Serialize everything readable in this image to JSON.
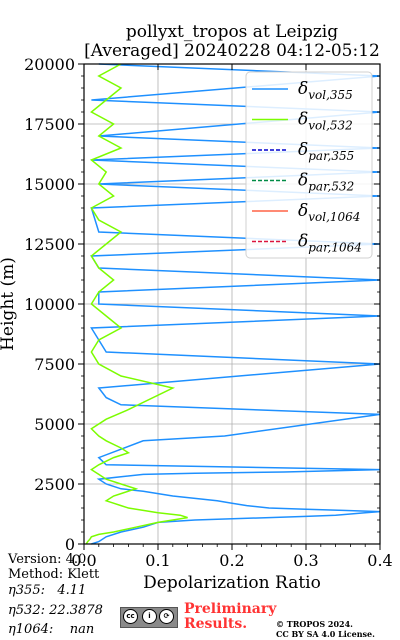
{
  "chart_data": {
    "type": "line",
    "title": "pollyxt_tropos at Leipzig",
    "subtitle": "[Averaged] 20240228 04:12-05:12",
    "xlabel": "Depolarization Ratio",
    "ylabel": "Height (m)",
    "xlim": [
      0,
      0.4
    ],
    "ylim": [
      0,
      20000
    ],
    "x_ticks": [
      "0.0",
      "0.1",
      "0.2",
      "0.3",
      "0.4"
    ],
    "y_ticks": [
      "0",
      "2500",
      "5000",
      "7500",
      "10000",
      "12500",
      "15000",
      "17500",
      "20000"
    ],
    "grid": true,
    "legend_position": "top-right",
    "series": [
      {
        "name": "δvol,355",
        "legend_main": "δ",
        "legend_sub": "vol,355",
        "color": "#1e90ff",
        "style": "solid",
        "x": [
          0.01,
          0.02,
          0.03,
          0.05,
          0.08,
          0.1,
          0.15,
          0.25,
          0.3,
          0.34,
          0.36,
          0.38,
          0.4,
          0.35,
          0.3,
          0.25,
          0.22,
          0.2,
          0.18,
          0.15,
          0.12,
          0.1,
          0.08,
          0.05,
          0.03,
          0.02,
          0.05,
          0.08,
          0.15,
          0.27,
          0.4,
          0.03,
          0.02,
          0.08,
          0.19,
          0.4,
          0.05,
          0.03,
          0.02,
          0.4,
          0.03,
          0.02,
          0.01,
          0.4,
          0.02,
          0.02,
          0.4,
          0.02,
          0.01,
          0.4,
          0.02,
          0.01,
          0.4,
          0.02,
          0.4,
          0.01,
          0.4,
          0.02,
          0.4,
          0.01,
          0.4,
          0.02
        ],
        "y": [
          0,
          100,
          300,
          500,
          700,
          900,
          1000,
          1100,
          1150,
          1200,
          1250,
          1300,
          1350,
          1400,
          1450,
          1500,
          1600,
          1700,
          1800,
          1900,
          2000,
          2100,
          2200,
          2300,
          2500,
          2700,
          2800,
          2900,
          2950,
          3000,
          3100,
          3300,
          3600,
          4300,
          4500,
          5400,
          5800,
          6100,
          6500,
          7500,
          8000,
          8500,
          9000,
          9500,
          10000,
          10500,
          11000,
          11500,
          12000,
          12500,
          13000,
          14000,
          14500,
          15000,
          15500,
          16000,
          16500,
          17000,
          18000,
          18500,
          19500,
          20000
        ]
      },
      {
        "name": "δvol,532",
        "legend_main": "δ",
        "legend_sub": "vol,532",
        "color": "#7cfc00",
        "style": "solid",
        "x": [
          0.003,
          0.005,
          0.008,
          0.01,
          0.02,
          0.04,
          0.07,
          0.1,
          0.12,
          0.14,
          0.13,
          0.1,
          0.08,
          0.06,
          0.05,
          0.04,
          0.03,
          0.04,
          0.05,
          0.06,
          0.07,
          0.05,
          0.03,
          0.02,
          0.01,
          0.02,
          0.04,
          0.06,
          0.05,
          0.03,
          0.02,
          0.01,
          0.03,
          0.06,
          0.12,
          0.05,
          0.02,
          0.01,
          0.02,
          0.05,
          0.03,
          0.01,
          0.02,
          0.04,
          0.02,
          0.01,
          0.03,
          0.05,
          0.02,
          0.01,
          0.04,
          0.02,
          0.03,
          0.01,
          0.05,
          0.02,
          0.04,
          0.01,
          0.03,
          0.05,
          0.02,
          0.05
        ],
        "y": [
          0,
          100,
          200,
          300,
          400,
          500,
          700,
          900,
          1000,
          1100,
          1200,
          1300,
          1400,
          1500,
          1600,
          1700,
          1800,
          2000,
          2100,
          2200,
          2300,
          2500,
          2700,
          2900,
          3100,
          3300,
          3600,
          3800,
          4000,
          4300,
          4500,
          4800,
          5200,
          5600,
          6500,
          7000,
          7500,
          8000,
          8500,
          9000,
          9500,
          10000,
          10500,
          11000,
          11500,
          12000,
          12500,
          13000,
          13500,
          14000,
          14500,
          15000,
          15500,
          16000,
          16500,
          17000,
          17500,
          18000,
          18500,
          19000,
          19500,
          20000
        ]
      },
      {
        "name": "δpar,355",
        "legend_main": "δ",
        "legend_sub": "par,355",
        "color": "#0000cd",
        "style": "dashed",
        "x": [],
        "y": []
      },
      {
        "name": "δpar,532",
        "legend_main": "δ",
        "legend_sub": "par,532",
        "color": "#008b45",
        "style": "dashed",
        "x": [],
        "y": []
      },
      {
        "name": "δvol,1064",
        "legend_main": "δ",
        "legend_sub": "vol,1064",
        "color": "#ff6347",
        "style": "solid",
        "x": [],
        "y": []
      },
      {
        "name": "δpar,1064",
        "legend_main": "δ",
        "legend_sub": "par,1064",
        "color": "#dc143c",
        "style": "dashed",
        "x": [],
        "y": []
      }
    ]
  },
  "footer": {
    "version": "Version: 4.0",
    "method": "Method: Klett",
    "eta355": "η355:   4.11",
    "eta532": "η532: 22.3878",
    "eta1064": "η1064:    nan",
    "preliminary_line1": "Preliminary",
    "preliminary_line2": "Results.",
    "copyright_line1": "© TROPOS 2024.",
    "copyright_line2": "CC BY SA 4.0 License."
  }
}
